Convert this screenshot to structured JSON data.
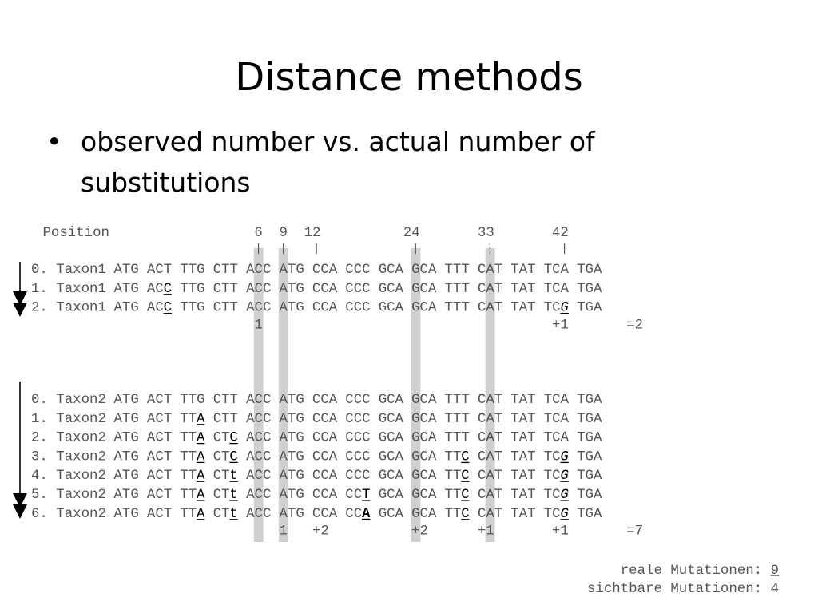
{
  "slide": {
    "title": "Distance methods",
    "bullet": "observed number vs. actual number of substitutions"
  },
  "position_header": {
    "label": "Position",
    "numbers": [
      {
        "value": "6",
        "column": 27
      },
      {
        "value": "9",
        "column": 30
      },
      {
        "value": "12",
        "column": 34
      },
      {
        "value": "24",
        "column": 46
      },
      {
        "value": "33",
        "column": 55
      },
      {
        "value": "42",
        "column": 64
      }
    ],
    "ticks": [
      27,
      30,
      34,
      46,
      55,
      64
    ]
  },
  "highlight_columns": [
    27,
    30,
    46,
    55
  ],
  "blocks": [
    {
      "rows": [
        {
          "prefix": "0. Taxon1 ",
          "codons": [
            "ATG",
            "ACT",
            "TTG",
            "CTT",
            "ACC",
            "ATG",
            "CCA",
            "CCC",
            "GCA",
            "GCA",
            "TTT",
            "CAT",
            "TAT",
            "TCA",
            "TGA"
          ],
          "marks": []
        },
        {
          "prefix": "1. Taxon1 ",
          "codons": [
            "ATG",
            "ACC",
            "TTG",
            "CTT",
            "ACC",
            "ATG",
            "CCA",
            "CCC",
            "GCA",
            "GCA",
            "TTT",
            "CAT",
            "TAT",
            "TCA",
            "TGA"
          ],
          "marks": [
            {
              "codon": 1,
              "style": "u"
            }
          ]
        },
        {
          "prefix": "2. Taxon1 ",
          "codons": [
            "ATG",
            "ACC",
            "TTG",
            "CTT",
            "ACC",
            "ATG",
            "CCA",
            "CCC",
            "GCA",
            "GCA",
            "TTT",
            "CAT",
            "TAT",
            "TCG",
            "TGA"
          ],
          "marks": [
            {
              "codon": 1,
              "style": "u"
            },
            {
              "codon": 13,
              "style": "ui"
            }
          ]
        }
      ],
      "counts": [
        {
          "text": "1",
          "column": 27
        },
        {
          "text": "+1",
          "column": 63
        },
        {
          "text": "=2",
          "column": 72
        }
      ]
    },
    {
      "rows": [
        {
          "prefix": "0. Taxon2 ",
          "codons": [
            "ATG",
            "ACT",
            "TTG",
            "CTT",
            "ACC",
            "ATG",
            "CCA",
            "CCC",
            "GCA",
            "GCA",
            "TTT",
            "CAT",
            "TAT",
            "TCA",
            "TGA"
          ],
          "marks": []
        },
        {
          "prefix": "1. Taxon2 ",
          "codons": [
            "ATG",
            "ACT",
            "TTA",
            "CTT",
            "ACC",
            "ATG",
            "CCA",
            "CCC",
            "GCA",
            "GCA",
            "TTT",
            "CAT",
            "TAT",
            "TCA",
            "TGA"
          ],
          "marks": [
            {
              "codon": 2,
              "style": "u"
            }
          ]
        },
        {
          "prefix": "2. Taxon2 ",
          "codons": [
            "ATG",
            "ACT",
            "TTA",
            "CTC",
            "ACC",
            "ATG",
            "CCA",
            "CCC",
            "GCA",
            "GCA",
            "TTT",
            "CAT",
            "TAT",
            "TCA",
            "TGA"
          ],
          "marks": [
            {
              "codon": 2,
              "style": "u"
            },
            {
              "codon": 3,
              "style": "u"
            }
          ]
        },
        {
          "prefix": "3. Taxon2 ",
          "codons": [
            "ATG",
            "ACT",
            "TTA",
            "CTC",
            "ACC",
            "ATG",
            "CCA",
            "CCC",
            "GCA",
            "GCA",
            "TTC",
            "CAT",
            "TAT",
            "TCG",
            "TGA"
          ],
          "marks": [
            {
              "codon": 2,
              "style": "u"
            },
            {
              "codon": 3,
              "style": "u"
            },
            {
              "codon": 10,
              "style": "u"
            },
            {
              "codon": 13,
              "style": "ui"
            }
          ]
        },
        {
          "prefix": "4. Taxon2 ",
          "codons": [
            "ATG",
            "ACT",
            "TTA",
            "CTt",
            "ACC",
            "ATG",
            "CCA",
            "CCC",
            "GCA",
            "GCA",
            "TTC",
            "CAT",
            "TAT",
            "TCG",
            "TGA"
          ],
          "marks": [
            {
              "codon": 2,
              "style": "u"
            },
            {
              "codon": 3,
              "style": "u"
            },
            {
              "codon": 10,
              "style": "u"
            },
            {
              "codon": 13,
              "style": "ui"
            }
          ]
        },
        {
          "prefix": "5. Taxon2 ",
          "codons": [
            "ATG",
            "ACT",
            "TTA",
            "CTt",
            "ACC",
            "ATG",
            "CCA",
            "CCT",
            "GCA",
            "GCA",
            "TTC",
            "CAT",
            "TAT",
            "TCG",
            "TGA"
          ],
          "marks": [
            {
              "codon": 2,
              "style": "u"
            },
            {
              "codon": 3,
              "style": "u"
            },
            {
              "codon": 7,
              "style": "u"
            },
            {
              "codon": 10,
              "style": "u"
            },
            {
              "codon": 13,
              "style": "ui"
            }
          ]
        },
        {
          "prefix": "6. Taxon2 ",
          "codons": [
            "ATG",
            "ACT",
            "TTA",
            "CTt",
            "ACC",
            "ATG",
            "CCA",
            "CCA",
            "GCA",
            "GCA",
            "TTC",
            "CAT",
            "TAT",
            "TCG",
            "TGA"
          ],
          "marks": [
            {
              "codon": 2,
              "style": "u"
            },
            {
              "codon": 3,
              "style": "u"
            },
            {
              "codon": 7,
              "style": "ub"
            },
            {
              "codon": 10,
              "style": "u"
            },
            {
              "codon": 13,
              "style": "ui"
            }
          ]
        }
      ],
      "counts": [
        {
          "text": "1",
          "column": 30
        },
        {
          "text": "+2",
          "column": 34
        },
        {
          "text": "+2",
          "column": 46
        },
        {
          "text": "+1",
          "column": 54
        },
        {
          "text": "+1",
          "column": 63
        },
        {
          "text": "=7",
          "column": 72
        }
      ]
    }
  ],
  "summary": {
    "real_label": "reale Mutationen: ",
    "real_value": "9",
    "visible_label": "sichtbare Mutationen: ",
    "visible_value": "4"
  },
  "colors": {
    "text": "#555555",
    "highlight": "#d0d0d0",
    "arrow": "#000000"
  }
}
